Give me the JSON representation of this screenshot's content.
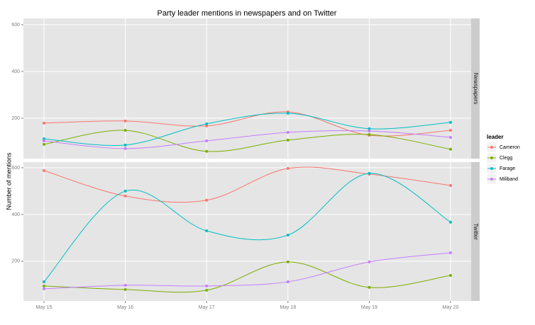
{
  "chart_data": {
    "type": "line",
    "title": "Party leader mentions in newspapers and on Twitter",
    "y_label": "Number of mentions",
    "legend_title": "leader",
    "categories": [
      "May 15",
      "May 16",
      "May 17",
      "May 18",
      "May 19",
      "May 20"
    ],
    "series": [
      {
        "name": "Cameron",
        "color": "#F8766D"
      },
      {
        "name": "Clegg",
        "color": "#7CAE00"
      },
      {
        "name": "Farage",
        "color": "#00BFC4"
      },
      {
        "name": "Miliband",
        "color": "#C77CFF"
      }
    ],
    "grid": true,
    "panels": [
      {
        "label": "Newspapers",
        "ylim": [
          27,
          627
        ],
        "yticks": [
          200,
          400,
          600
        ],
        "values": [
          [
            179,
            188,
            167,
            227,
            127,
            148
          ],
          [
            88,
            148,
            58,
            106,
            130,
            67
          ],
          [
            112,
            85,
            176,
            221,
            155,
            182
          ],
          [
            103,
            70,
            103,
            139,
            145,
            118
          ]
        ]
      },
      {
        "label": "Twitter",
        "ylim": [
          30,
          624
        ],
        "yticks": [
          200,
          400,
          600
        ],
        "values": [
          [
            588,
            479,
            461,
            597,
            573,
            524
          ],
          [
            94,
            79,
            76,
            197,
            88,
            139
          ],
          [
            112,
            500,
            330,
            312,
            576,
            367
          ],
          [
            82,
            97,
            94,
            112,
            197,
            236
          ]
        ]
      }
    ]
  }
}
